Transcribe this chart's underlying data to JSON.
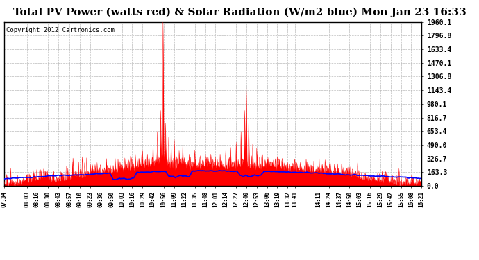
{
  "title": "Total PV Power (watts red) & Solar Radiation (W/m2 blue) Mon Jan 23 16:33",
  "copyright_text": "Copyright 2012 Cartronics.com",
  "y_max": 1960.1,
  "y_min": 0.0,
  "y_ticks": [
    0.0,
    163.3,
    326.7,
    490.0,
    653.4,
    816.7,
    980.1,
    1143.4,
    1306.8,
    1470.1,
    1633.4,
    1796.8,
    1960.1
  ],
  "bg_color": "#ffffff",
  "plot_bg": "#ffffff",
  "red_color": "#ff0000",
  "blue_color": "#0000ff",
  "grid_color": "#bbbbbb",
  "title_fontsize": 11,
  "copyright_fontsize": 6.5,
  "x_tick_labels": [
    "07:34",
    "08:03",
    "08:16",
    "08:30",
    "08:43",
    "08:57",
    "09:10",
    "09:23",
    "09:36",
    "09:50",
    "10:03",
    "10:16",
    "10:29",
    "10:42",
    "10:56",
    "11:09",
    "11:22",
    "11:35",
    "11:48",
    "12:01",
    "12:14",
    "12:27",
    "12:40",
    "12:53",
    "13:06",
    "13:19",
    "13:32",
    "13:41",
    "14:11",
    "14:24",
    "14:37",
    "14:50",
    "15:03",
    "15:16",
    "15:29",
    "15:42",
    "15:55",
    "16:08",
    "16:21"
  ]
}
